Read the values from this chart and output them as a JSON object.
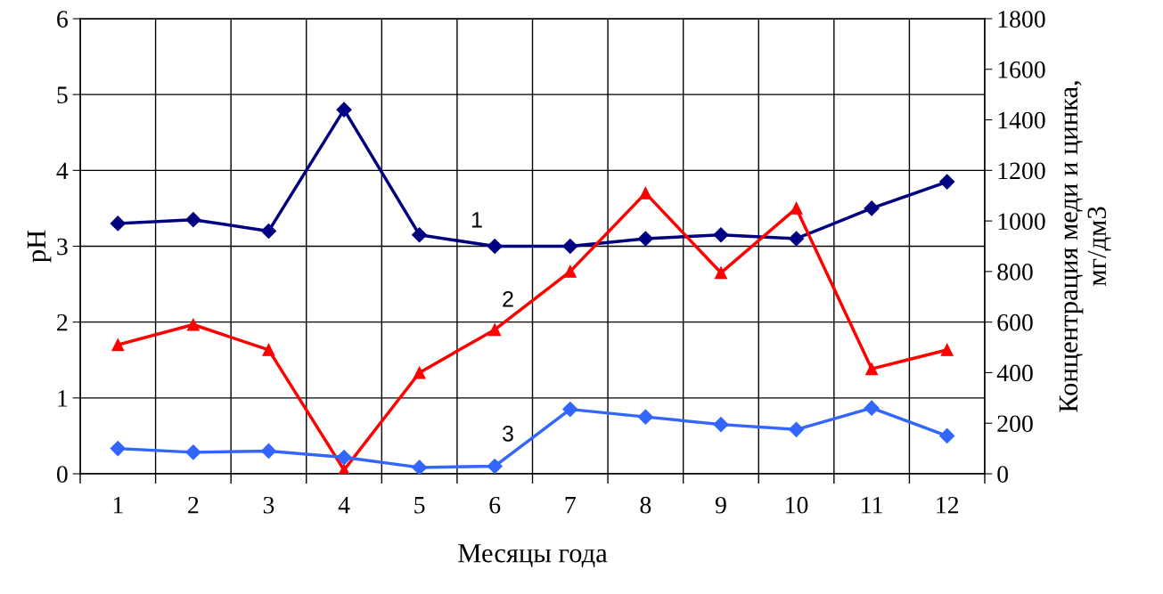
{
  "chart_data": {
    "type": "line",
    "xlabel": "Месяцы года",
    "ylabel": "pH",
    "y2label": "Концентрация меди и цинка,\nмг/дм3",
    "categories": [
      "1",
      "2",
      "3",
      "4",
      "5",
      "6",
      "7",
      "8",
      "9",
      "10",
      "11",
      "12"
    ],
    "series": [
      {
        "color": "#000080",
        "marker": "diamond",
        "values": [
          3.3,
          3.35,
          3.2,
          4.8,
          3.15,
          3.0,
          3.0,
          3.1,
          3.15,
          3.1,
          3.5,
          3.85
        ]
      },
      {
        "color": "#ff0000",
        "marker": "triangle",
        "axis": "y2",
        "values": [
          510,
          590,
          490,
          15,
          400,
          570,
          800,
          1110,
          795,
          1050,
          415,
          490
        ]
      },
      {
        "color": "#3366ff",
        "marker": "diamond",
        "axis": "y2",
        "values": [
          100,
          85,
          90,
          65,
          25,
          30,
          255,
          225,
          195,
          175,
          260,
          150
        ]
      }
    ],
    "ylim": [
      0,
      6
    ],
    "yticks": [
      0,
      1,
      2,
      3,
      4,
      5,
      6
    ],
    "y2lim": [
      0,
      1800
    ],
    "y2ticks": [
      0,
      200,
      400,
      600,
      800,
      1000,
      1200,
      1400,
      1600,
      1800
    ],
    "grid": true,
    "line_style": "solid",
    "annotations": [
      "1",
      "2",
      "3"
    ]
  }
}
